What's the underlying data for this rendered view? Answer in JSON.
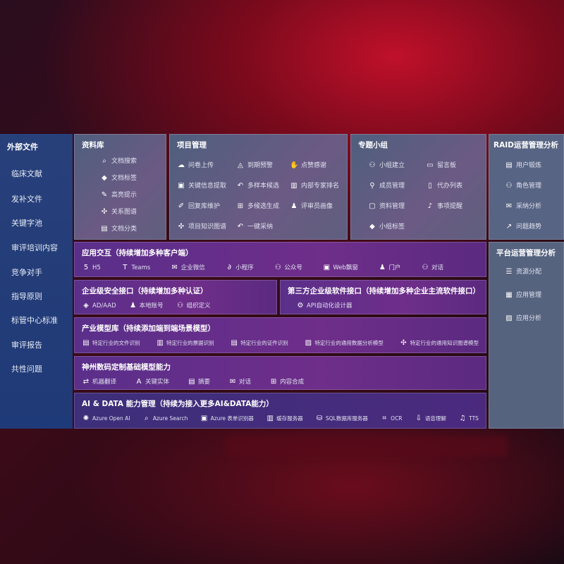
{
  "sidebar": {
    "title": "外部文件",
    "items": [
      "临床文献",
      "发补文件",
      "关键字池",
      "审评培训内容",
      "竞争对手",
      "指导原则",
      "标管中心标准",
      "审评报告",
      "共性问题"
    ]
  },
  "library": {
    "title": "资料库",
    "items": [
      {
        "icon": "doc-search-icon",
        "label": "文档搜索"
      },
      {
        "icon": "tag-icon",
        "label": "文档标签"
      },
      {
        "icon": "pen-icon",
        "label": "高亮提示"
      },
      {
        "icon": "graph-icon",
        "label": "关系图谱"
      },
      {
        "icon": "doc-category-icon",
        "label": "文档分类"
      }
    ]
  },
  "project": {
    "title": "项目管理",
    "items": [
      {
        "icon": "cloud-upload-icon",
        "label": "问卷上传"
      },
      {
        "icon": "alarm-icon",
        "label": "到期预警"
      },
      {
        "icon": "thumbs-up-icon",
        "label": "点赞感谢"
      },
      {
        "icon": "window-icon",
        "label": "关键信息提取"
      },
      {
        "icon": "reply-icon",
        "label": "多样本候选"
      },
      {
        "icon": "ranking-icon",
        "label": "内部专家排名"
      },
      {
        "icon": "edit-icon",
        "label": "回复库维护"
      },
      {
        "icon": "puzzle-icon",
        "label": "多候选生成"
      },
      {
        "icon": "user-icon",
        "label": "评审员画像"
      },
      {
        "icon": "graph-icon",
        "label": "项目知识图谱"
      },
      {
        "icon": "reply-icon",
        "label": "一键采纳"
      }
    ]
  },
  "group": {
    "title": "专题小组",
    "items": [
      {
        "icon": "users-icon",
        "label": "小组建立"
      },
      {
        "icon": "bbs-icon",
        "label": "留言板"
      },
      {
        "icon": "user-add-icon",
        "label": "成员管理"
      },
      {
        "icon": "clipboard-icon",
        "label": "代办列表"
      },
      {
        "icon": "folder-icon",
        "label": "资料管理"
      },
      {
        "icon": "bell-icon",
        "label": "事项提醒"
      },
      {
        "icon": "tag-icon",
        "label": "小组标签"
      }
    ]
  },
  "raid": {
    "title": "RAID运营管理分析",
    "items": [
      {
        "icon": "id-card-icon",
        "label": "用户锻炼"
      },
      {
        "icon": "users-icon",
        "label": "角色管理"
      },
      {
        "icon": "qa-icon",
        "label": "采纳分析"
      },
      {
        "icon": "trend-icon",
        "label": "问题趋势"
      }
    ]
  },
  "platform": {
    "title": "平台运营管理分析",
    "items": [
      {
        "icon": "list-icon",
        "label": "资源分配"
      },
      {
        "icon": "apps-icon",
        "label": "应用管理"
      },
      {
        "icon": "chart-icon",
        "label": "应用分析"
      }
    ]
  },
  "interaction": {
    "title": "应用交互（持续增加多种客户端）",
    "items": [
      {
        "icon": "html5-icon",
        "label": "H5"
      },
      {
        "icon": "teams-icon",
        "label": "Teams"
      },
      {
        "icon": "wecom-icon",
        "label": "企业微信"
      },
      {
        "icon": "miniprogram-icon",
        "label": "小程序"
      },
      {
        "icon": "users-icon",
        "label": "公众号"
      },
      {
        "icon": "window-icon",
        "label": "Web飘窗"
      },
      {
        "icon": "portal-icon",
        "label": "门户"
      },
      {
        "icon": "chat-users-icon",
        "label": "对话"
      }
    ]
  },
  "security": {
    "title": "企业级安全接口（持续增加多种认证）",
    "items": [
      {
        "icon": "ad-icon",
        "label": "AD/AAD"
      },
      {
        "icon": "account-icon",
        "label": "本地账号"
      },
      {
        "icon": "org-icon",
        "label": "组织定义"
      }
    ]
  },
  "thirdparty": {
    "title": "第三方企业级软件接口（持续增加多种企业主流软件接口）",
    "items": [
      {
        "icon": "gear-icon",
        "label": "API自动化设计器"
      }
    ]
  },
  "industry": {
    "title": "产业模型库（持续添加端到端场景模型）",
    "items": [
      {
        "icon": "file-icon",
        "label": "特定行业的文件识别"
      },
      {
        "icon": "receipt-icon",
        "label": "特定行业的票据识别"
      },
      {
        "icon": "id-card-icon",
        "label": "特定行业的证件识别"
      },
      {
        "icon": "image-icon",
        "label": "特定行业的通用数据分析模型"
      },
      {
        "icon": "graph-icon",
        "label": "特定行业的通用知识图谱模型"
      }
    ]
  },
  "base": {
    "title": "神州数码定制基础模型能力",
    "items": [
      {
        "icon": "translate-icon",
        "label": "机器翻译"
      },
      {
        "icon": "entity-icon",
        "label": "关键实体"
      },
      {
        "icon": "summary-icon",
        "label": "摘要"
      },
      {
        "icon": "chat-icon",
        "label": "对话"
      },
      {
        "icon": "puzzle-icon",
        "label": "内容合成"
      }
    ]
  },
  "ai": {
    "title": "AI & DATA 能力管理（持续为接入更多AI&DATA能力）",
    "items": [
      {
        "icon": "openai-icon",
        "label": "Azure Open AI"
      },
      {
        "icon": "search-icon",
        "label": "Azure Search"
      },
      {
        "icon": "form-icon",
        "label": "Azure 表单识别器"
      },
      {
        "icon": "cache-icon",
        "label": "缓存服务器"
      },
      {
        "icon": "sql-icon",
        "label": "SQL数据库服务器"
      },
      {
        "icon": "ocr-icon",
        "label": "OCR"
      },
      {
        "icon": "speech-icon",
        "label": "语音理解"
      },
      {
        "icon": "tts-icon",
        "label": "TTS"
      }
    ]
  }
}
